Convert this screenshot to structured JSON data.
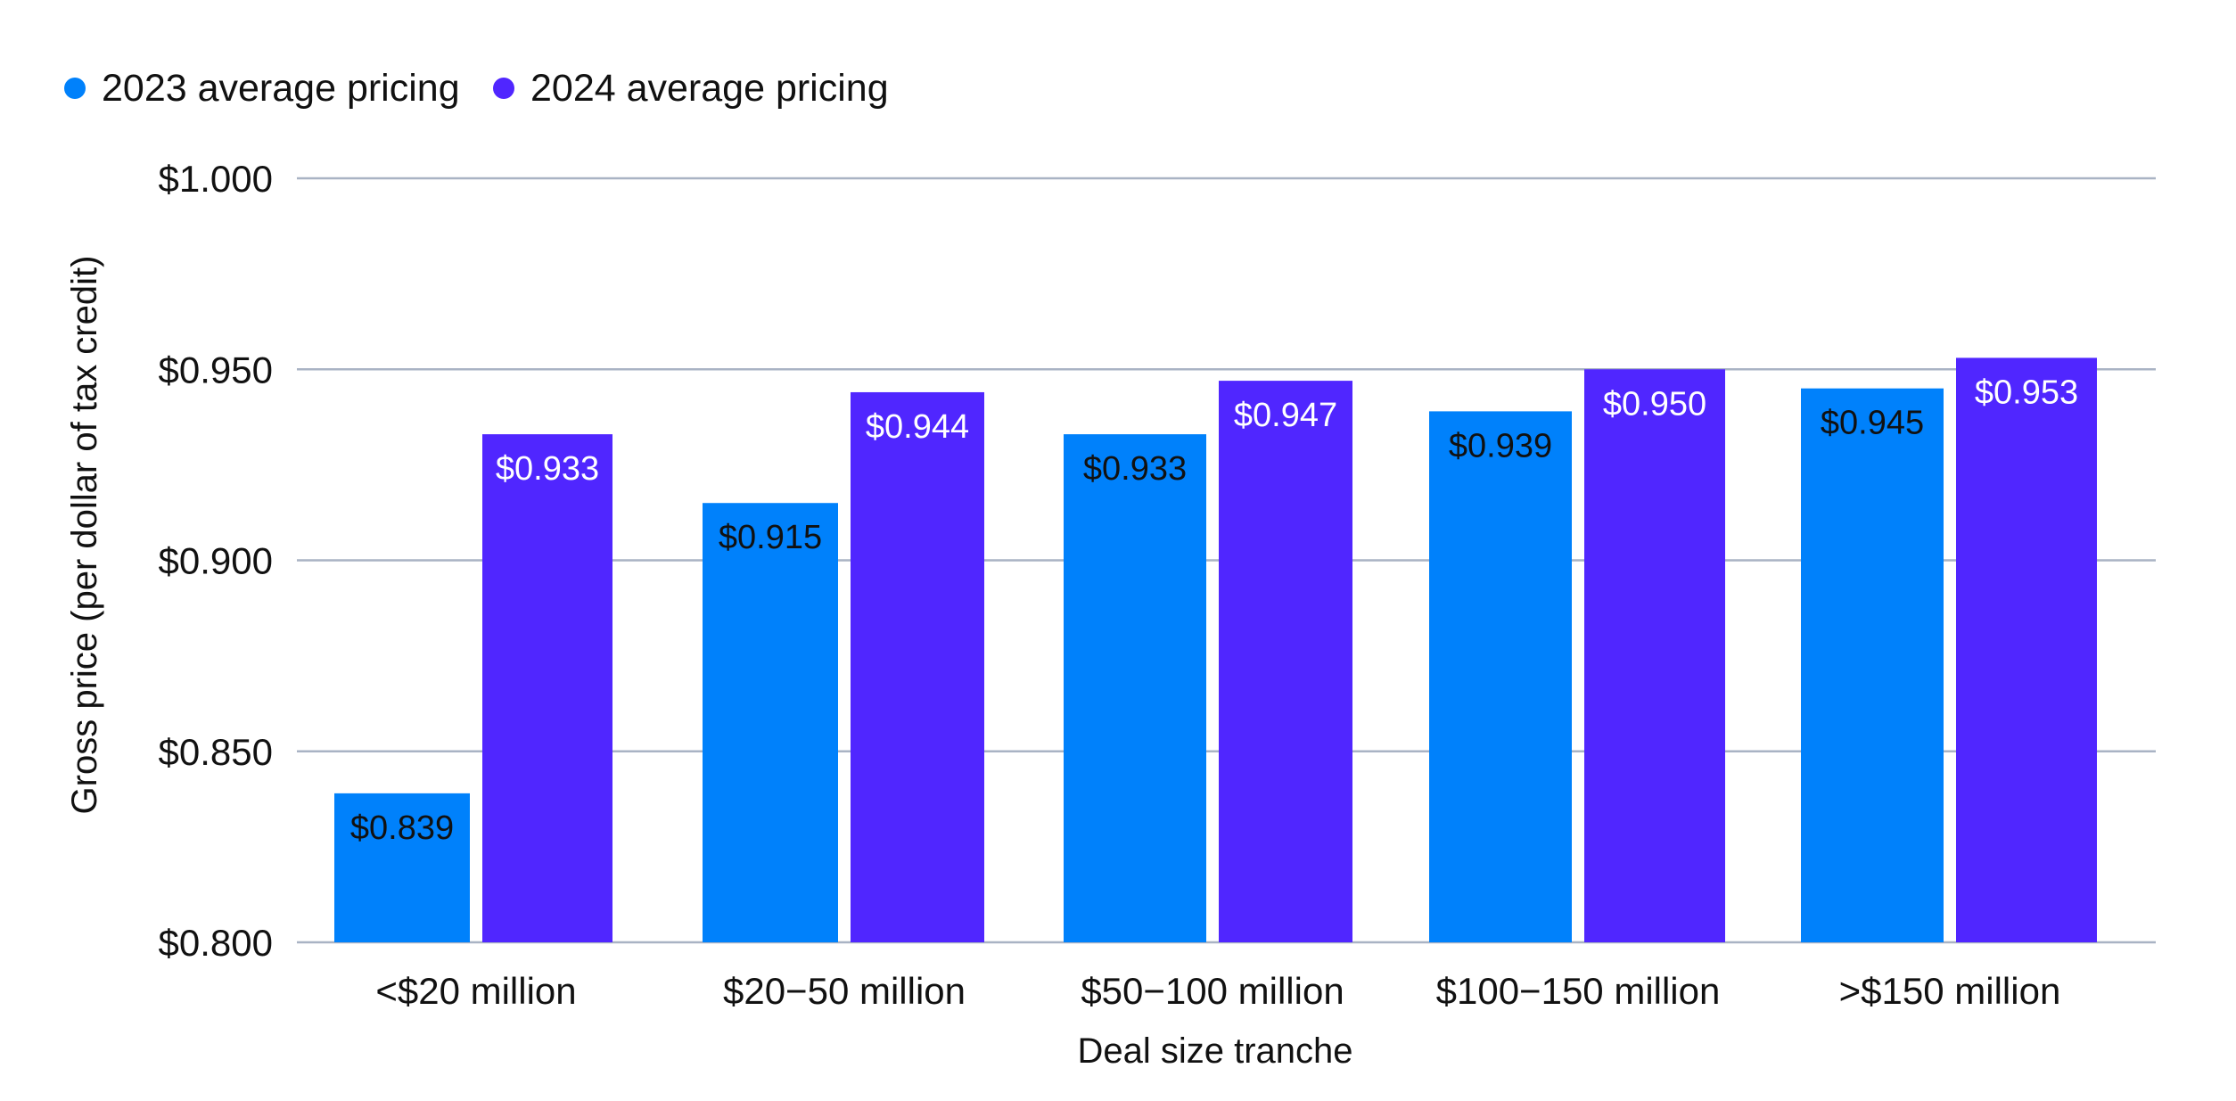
{
  "chart_data": {
    "type": "bar",
    "title": "",
    "xlabel": "Deal size tranche",
    "ylabel": "Gross price (per dollar of tax credit)",
    "ylim": [
      0.8,
      1.0
    ],
    "yticks": [
      0.8,
      0.85,
      0.9,
      0.95,
      1.0
    ],
    "ytick_labels": [
      "$0.800",
      "$0.850",
      "$0.900",
      "$0.950",
      "$1.000"
    ],
    "grid": true,
    "legend_position": "top-left",
    "categories": [
      "<$20 million",
      "$20−50 million",
      "$50−100 million",
      "$100−150 million",
      ">$150 million"
    ],
    "series": [
      {
        "name": "2023 average pricing",
        "color": "#0081fb",
        "label_color": "#111111",
        "values": [
          0.839,
          0.915,
          0.933,
          0.939,
          0.945
        ],
        "labels": [
          "$0.839",
          "$0.915",
          "$0.933",
          "$0.939",
          "$0.945"
        ]
      },
      {
        "name": "2024 average pricing",
        "color": "#5026ff",
        "label_color": "#ffffff",
        "values": [
          0.933,
          0.944,
          0.947,
          0.95,
          0.953
        ],
        "labels": [
          "$0.933",
          "$0.944",
          "$0.947",
          "$0.950",
          "$0.953"
        ]
      }
    ]
  },
  "colors": {
    "background": "#ffffff",
    "gridline": "#a9b3c4",
    "text": "#111111"
  }
}
